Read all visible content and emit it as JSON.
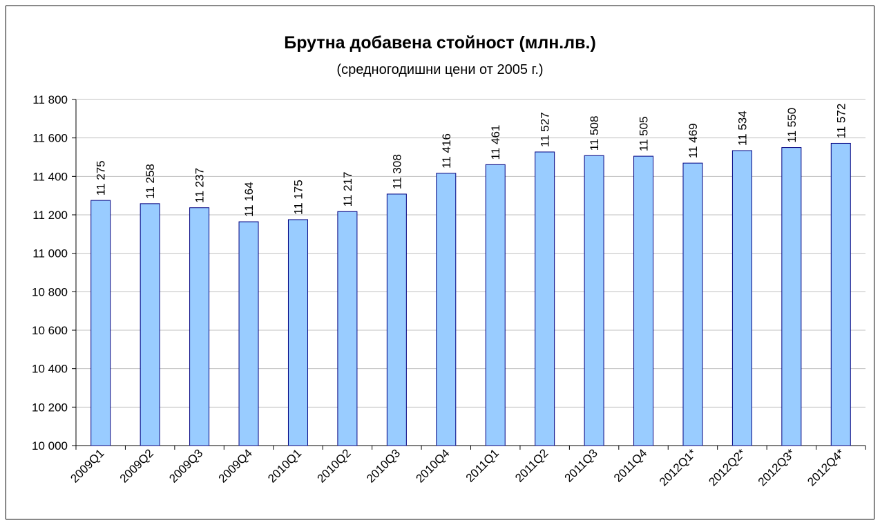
{
  "chart_data": {
    "type": "bar",
    "title": "Брутна добавена стойност (млн.лв.)",
    "subtitle": "(средногодишни цени от 2005 г.)",
    "categories": [
      "2009Q1",
      "2009Q2",
      "2009Q3",
      "2009Q4",
      "2010Q1",
      "2010Q2",
      "2010Q3",
      "2010Q4",
      "2011Q1",
      "2011Q2",
      "2011Q3",
      "2011Q4",
      "2012Q1*",
      "2012Q2*",
      "2012Q3*",
      "2012Q4*"
    ],
    "values": [
      11275,
      11258,
      11237,
      11164,
      11175,
      11217,
      11308,
      11416,
      11461,
      11527,
      11508,
      11505,
      11469,
      11534,
      11550,
      11572
    ],
    "value_labels": [
      "11 275",
      "11 258",
      "11 237",
      "11 164",
      "11 175",
      "11 217",
      "11 308",
      "11 416",
      "11 461",
      "11 527",
      "11 508",
      "11 505",
      "11 469",
      "11 534",
      "11 550",
      "11 572"
    ],
    "color": "#99ccff",
    "ylim": [
      10000,
      11800
    ],
    "yticks": [
      {
        "value": 10000,
        "label": "10 000"
      },
      {
        "value": 10200,
        "label": "10 200"
      },
      {
        "value": 10400,
        "label": "10 400"
      },
      {
        "value": 10600,
        "label": "10 600"
      },
      {
        "value": 10800,
        "label": "10 800"
      },
      {
        "value": 11000,
        "label": "11 000"
      },
      {
        "value": 11200,
        "label": "11 200"
      },
      {
        "value": 11400,
        "label": "11 400"
      },
      {
        "value": 11600,
        "label": "11 600"
      },
      {
        "value": 11800,
        "label": "11 800"
      }
    ],
    "grid": true
  }
}
